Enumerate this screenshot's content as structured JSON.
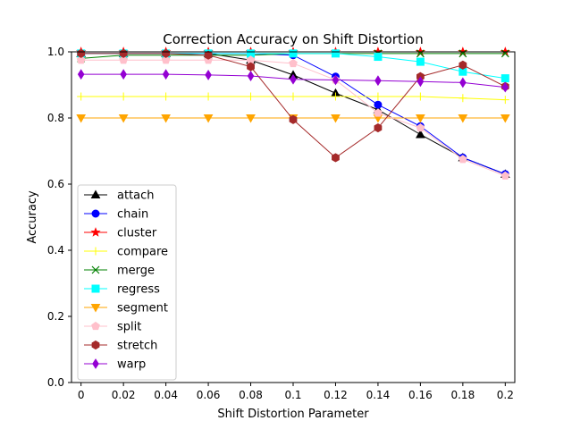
{
  "chart_data": {
    "type": "line",
    "title": "Correction Accuracy on Shift Distortion",
    "xlabel": "Shift Distortion Parameter",
    "ylabel": "Accuracy",
    "x": [
      0,
      0.02,
      0.04,
      0.06,
      0.08,
      0.1,
      0.12,
      0.14,
      0.16,
      0.18,
      0.2
    ],
    "x_tick_labels": [
      "0",
      "0.02",
      "0.04",
      "0.06",
      "0.08",
      "0.1",
      "0.12",
      "0.14",
      "0.16",
      "0.18",
      "0.2"
    ],
    "ylim": [
      0,
      1
    ],
    "y_ticks": [
      0,
      0.2,
      0.4,
      0.6,
      0.8,
      1.0
    ],
    "y_tick_labels": [
      "0.0",
      "0.2",
      "0.4",
      "0.6",
      "0.8",
      "1.0"
    ],
    "grid": false,
    "legend_position": "lower-left",
    "series": [
      {
        "name": "attach",
        "color": "#000000",
        "marker": "triangle-up",
        "values": [
          0.995,
          0.995,
          0.995,
          0.995,
          0.975,
          0.93,
          0.875,
          0.825,
          0.75,
          0.68,
          0.63
        ]
      },
      {
        "name": "chain",
        "color": "#0000ff",
        "marker": "circle",
        "values": [
          0.995,
          0.995,
          0.995,
          0.995,
          0.995,
          0.99,
          0.925,
          0.84,
          0.775,
          0.68,
          0.63
        ]
      },
      {
        "name": "cluster",
        "color": "#ff0000",
        "marker": "star",
        "values": [
          1.0,
          1.0,
          1.0,
          1.0,
          1.0,
          1.0,
          1.0,
          1.0,
          1.0,
          1.0,
          1.0
        ]
      },
      {
        "name": "compare",
        "color": "#ffff00",
        "marker": "plus",
        "values": [
          0.865,
          0.865,
          0.865,
          0.865,
          0.865,
          0.865,
          0.865,
          0.865,
          0.865,
          0.86,
          0.855
        ]
      },
      {
        "name": "merge",
        "color": "#008000",
        "marker": "x",
        "values": [
          0.98,
          0.99,
          0.99,
          0.99,
          0.99,
          0.995,
          0.995,
          0.995,
          0.995,
          0.995,
          0.995
        ]
      },
      {
        "name": "regress",
        "color": "#00ffff",
        "marker": "square",
        "values": [
          0.995,
          0.995,
          0.995,
          0.995,
          0.995,
          0.995,
          0.995,
          0.985,
          0.97,
          0.94,
          0.92
        ]
      },
      {
        "name": "segment",
        "color": "#ffa500",
        "marker": "triangle-down",
        "values": [
          0.8,
          0.8,
          0.8,
          0.8,
          0.8,
          0.8,
          0.8,
          0.8,
          0.8,
          0.8,
          0.8
        ]
      },
      {
        "name": "split",
        "color": "#ffc0cb",
        "marker": "pentagon",
        "values": [
          0.975,
          0.975,
          0.975,
          0.975,
          0.975,
          0.965,
          0.915,
          0.815,
          0.77,
          0.675,
          0.625
        ]
      },
      {
        "name": "stretch",
        "color": "#a52a2a",
        "marker": "hexagon",
        "values": [
          0.995,
          0.995,
          0.995,
          0.99,
          0.955,
          0.795,
          0.68,
          0.77,
          0.925,
          0.96,
          0.895
        ]
      },
      {
        "name": "warp",
        "color": "#9400d3",
        "marker": "thin-diamond",
        "values": [
          0.932,
          0.932,
          0.932,
          0.93,
          0.927,
          0.917,
          0.915,
          0.913,
          0.91,
          0.907,
          0.893
        ]
      }
    ]
  }
}
